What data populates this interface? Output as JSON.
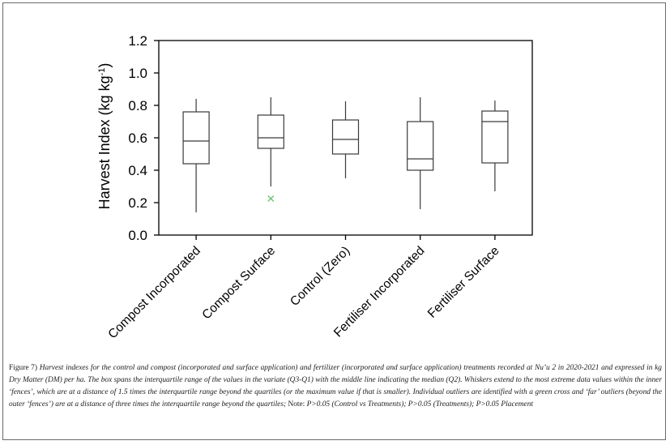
{
  "chart_data": {
    "type": "box",
    "ylabel_main": "Harvest Index (kg kg",
    "ylabel_sup": "-1",
    "ylabel_close": ")",
    "ylim": [
      0,
      1.2
    ],
    "yticks": [
      "0.0",
      "0.2",
      "0.4",
      "0.6",
      "0.8",
      "1.0",
      "1.2"
    ],
    "grid": false,
    "categories": [
      "Compost Incorporated",
      "Compost Surface",
      "Control (Zero)",
      "Fertiliser Incorporated",
      "Fertiliser Surface"
    ],
    "boxes": [
      {
        "whisker_low": 0.14,
        "q1": 0.44,
        "median": 0.58,
        "q3": 0.76,
        "whisker_high": 0.84,
        "outliers": []
      },
      {
        "whisker_low": 0.3,
        "q1": 0.535,
        "median": 0.6,
        "q3": 0.74,
        "whisker_high": 0.85,
        "outliers": [
          0.225
        ]
      },
      {
        "whisker_low": 0.35,
        "q1": 0.5,
        "median": 0.59,
        "q3": 0.71,
        "whisker_high": 0.825,
        "outliers": []
      },
      {
        "whisker_low": 0.16,
        "q1": 0.4,
        "median": 0.47,
        "q3": 0.7,
        "whisker_high": 0.85,
        "outliers": []
      },
      {
        "whisker_low": 0.27,
        "q1": 0.445,
        "median": 0.7,
        "q3": 0.765,
        "whisker_high": 0.83,
        "outliers": []
      }
    ],
    "colors": {
      "box": "#3a3a3a",
      "outlier": "#6cc070",
      "axis": "#000000"
    }
  },
  "caption": {
    "label": "Figure 7)",
    "text": "Harvest indexes for the control and compost (incorporated and surface application) and fertilizer (incorporated and surface application) treatments recorded at Nu’u 2 in 2020-2021 and expressed in kg Dry Matter (DM) per ha. The box spans the interquartile range of the values in the variate (Q3-Q1) with the middle line indicating the median (Q2). Whiskers extend to the most extreme data values within the inner ‘fences’, which are at a distance of 1.5 times the interquartile range beyond the quartiles (or the maximum value if that is smaller). Individual outliers are identified with a green cross and ‘far’ outliers (beyond the outer ‘fences’) are at a distance of three times the interquartile range beyond the quartiles;",
    "note_label": "Note:",
    "note_text": "P>0.05 (Control vs Treatments); P>0.05 (Treatments); P>0.05 Placement"
  }
}
